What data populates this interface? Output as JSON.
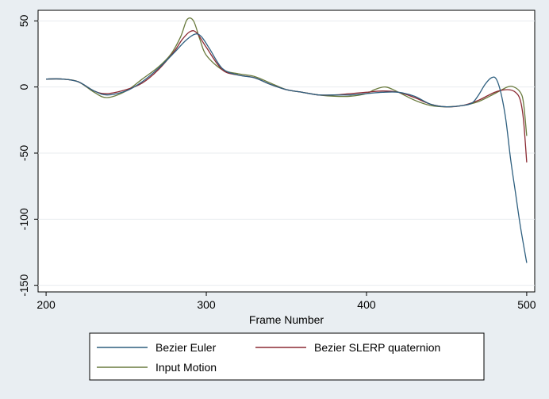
{
  "chart_data": {
    "type": "line",
    "title": "",
    "xlabel": "Frame Number",
    "ylabel": "",
    "xlim": [
      195,
      505
    ],
    "ylim": [
      -155,
      58
    ],
    "xticks": [
      "200",
      "300",
      "400",
      "500"
    ],
    "yticks": [
      "50",
      "0",
      "-50",
      "-100",
      "-150"
    ],
    "grid": "horizontal",
    "legend_position": "bottom",
    "series": [
      {
        "name": "Bezier Euler",
        "color": "#2e5f7f",
        "x": [
          200,
          210,
          220,
          230,
          238,
          250,
          260,
          270,
          280,
          287,
          293,
          297,
          302,
          310,
          320,
          330,
          340,
          350,
          360,
          370,
          380,
          390,
          400,
          410,
          420,
          430,
          440,
          450,
          460,
          466,
          470,
          474,
          478,
          481,
          484,
          487,
          490,
          493,
          496,
          500
        ],
        "y": [
          6,
          6,
          4,
          -3,
          -6,
          -3,
          4,
          14,
          26,
          35,
          40,
          38,
          29,
          14,
          9,
          7,
          2,
          -2,
          -4,
          -6,
          -6,
          -6,
          -5,
          -4,
          -4,
          -7,
          -13,
          -15,
          -14,
          -12,
          -6,
          2,
          7,
          6,
          -5,
          -25,
          -55,
          -80,
          -105,
          -133
        ]
      },
      {
        "name": "Bezier SLERP quaternion",
        "color": "#8b2a33",
        "x": [
          200,
          210,
          220,
          230,
          238,
          250,
          260,
          270,
          280,
          285,
          290,
          294,
          300,
          310,
          320,
          330,
          340,
          350,
          360,
          370,
          380,
          390,
          400,
          410,
          420,
          430,
          440,
          450,
          460,
          470,
          480,
          488,
          493,
          496,
          498,
          500
        ],
        "y": [
          6,
          6,
          4,
          -3,
          -5,
          -2,
          3,
          13,
          27,
          36,
          42,
          41,
          30,
          13,
          9,
          7,
          2,
          -2,
          -4,
          -6,
          -6,
          -5,
          -4,
          -3,
          -4,
          -8,
          -13,
          -15,
          -14,
          -10,
          -4,
          -2,
          -4,
          -10,
          -25,
          -57
        ]
      },
      {
        "name": "Input Motion",
        "color": "#697a3d",
        "x": [
          200,
          210,
          220,
          230,
          238,
          250,
          260,
          270,
          278,
          284,
          288,
          292,
          296,
          300,
          310,
          320,
          330,
          340,
          350,
          360,
          370,
          380,
          390,
          400,
          405,
          412,
          420,
          430,
          440,
          450,
          460,
          470,
          480,
          488,
          492,
          496,
          498,
          500
        ],
        "y": [
          6,
          6,
          4,
          -4,
          -8,
          -3,
          6,
          15,
          25,
          38,
          51,
          50,
          36,
          24,
          13,
          10,
          8,
          3,
          -2,
          -4,
          -6,
          -7,
          -7,
          -5,
          -2,
          0,
          -4,
          -10,
          -14,
          -15,
          -14,
          -11,
          -5,
          0,
          0,
          -4,
          -12,
          -37
        ]
      }
    ]
  }
}
